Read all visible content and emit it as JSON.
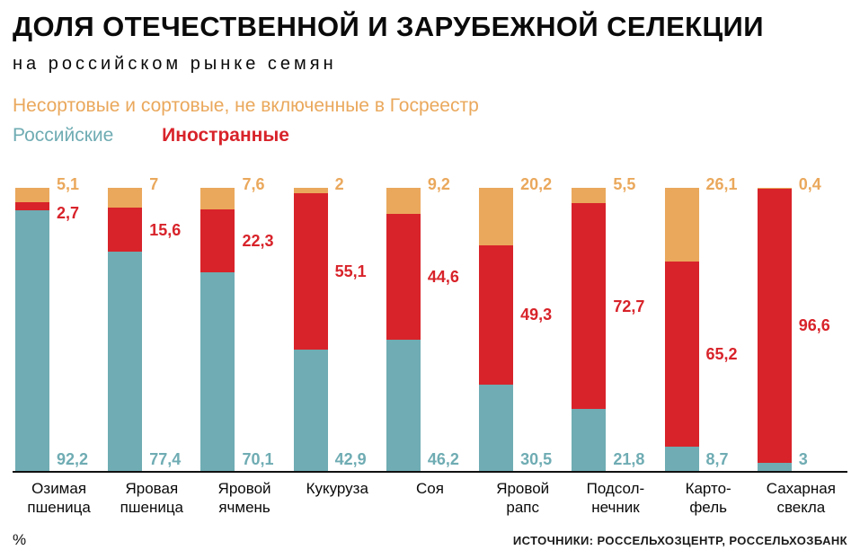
{
  "header": {
    "title": "ДОЛЯ ОТЕЧЕСТВЕННОЙ И ЗАРУБЕЖНОЙ СЕЛЕКЦИИ",
    "subtitle": "на российском рынке семян"
  },
  "legend": {
    "unsorted": "Несортовые и сортовые, не включенные в Госреестр",
    "russian": "Российские",
    "foreign": "Иностранные"
  },
  "colors": {
    "russian": "#6FACB3",
    "foreign": "#D8232A",
    "unsorted": "#EAA85C",
    "text": "#0A0A0A"
  },
  "chart_data": {
    "type": "bar",
    "stacked": true,
    "unit": "%",
    "ylim": [
      0,
      100
    ],
    "title": "ДОЛЯ ОТЕЧЕСТВЕННОЙ И ЗАРУБЕЖНОЙ СЕЛЕКЦИИ на российском рынке семян",
    "legend_position": "top-left",
    "grid": false,
    "categories": [
      "Озимая пшеница",
      "Яровая пшеница",
      "Яровой ячмень",
      "Кукуруза",
      "Соя",
      "Яровой рапс",
      "Подсолнечник",
      "Картофель",
      "Сахарная свекла"
    ],
    "category_lines": [
      [
        "Озимая",
        "пшеница"
      ],
      [
        "Яровая",
        "пшеница"
      ],
      [
        "Яровой",
        "ячмень"
      ],
      [
        "Кукуруза"
      ],
      [
        "Соя"
      ],
      [
        "Яровой",
        "рапс"
      ],
      [
        "Подсол-",
        "нечник"
      ],
      [
        "Карто-",
        "фель"
      ],
      [
        "Сахарная",
        "свекла"
      ]
    ],
    "series": [
      {
        "name": "Российские",
        "key": "russian",
        "values": [
          92.2,
          77.4,
          70.1,
          42.9,
          46.2,
          30.5,
          21.8,
          8.7,
          3
        ],
        "labels": [
          "92,2",
          "77,4",
          "70,1",
          "42,9",
          "46,2",
          "30,5",
          "21,8",
          "8,7",
          "3"
        ]
      },
      {
        "name": "Иностранные",
        "key": "foreign",
        "values": [
          2.7,
          15.6,
          22.3,
          55.1,
          44.6,
          49.3,
          72.7,
          65.2,
          96.6
        ],
        "labels": [
          "2,7",
          "15,6",
          "22,3",
          "55,1",
          "44,6",
          "49,3",
          "72,7",
          "65,2",
          "96,6"
        ]
      },
      {
        "name": "Несортовые и сортовые, не включенные в Госреестр",
        "key": "unsorted",
        "values": [
          5.1,
          7,
          7.6,
          2,
          9.2,
          20.2,
          5.5,
          26.1,
          0.4
        ],
        "labels": [
          "5,1",
          "7",
          "7,6",
          "2",
          "9,2",
          "20,2",
          "5,5",
          "26,1",
          "0,4"
        ]
      }
    ]
  },
  "footer": {
    "unit": "%",
    "sources": "ИСТОЧНИКИ: РОССЕЛЬХОЗЦЕНТР, РОССЕЛЬХОЗБАНК"
  }
}
